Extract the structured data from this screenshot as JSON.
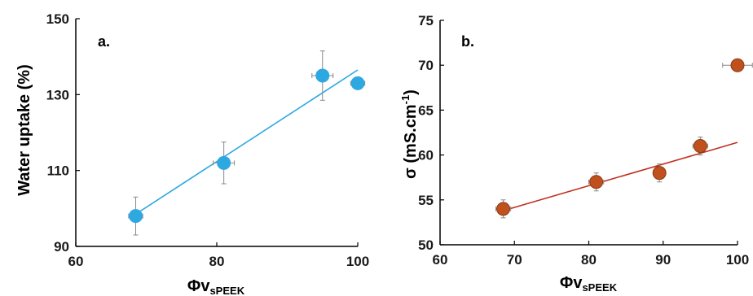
{
  "chart_data": [
    {
      "type": "scatter",
      "panel_label": "a.",
      "xlabel_main": "Φv",
      "xlabel_sub": "sPEEK",
      "ylabel": "Water uptake (%)",
      "xlim": [
        60,
        100
      ],
      "ylim": [
        90,
        150
      ],
      "xticks": [
        "60",
        "80",
        "100"
      ],
      "yticks": [
        "90",
        "110",
        "130",
        "150"
      ],
      "xtick_values": [
        60,
        80,
        100
      ],
      "ytick_values": [
        90,
        110,
        130,
        150
      ],
      "marker_color": "#2ea8e0",
      "line_color": "#2ea8e0",
      "points": [
        {
          "x": 68.5,
          "y": 98,
          "xerr": 1,
          "yerr": 5
        },
        {
          "x": 81,
          "y": 112,
          "xerr": 1.5,
          "yerr": 5.5
        },
        {
          "x": 95,
          "y": 135,
          "xerr": 1.5,
          "yerr": 6.5
        },
        {
          "x": 100,
          "y": 133,
          "xerr": 1,
          "yerr": 0
        }
      ],
      "trendline": [
        {
          "x": 68.5,
          "y": 98.5
        },
        {
          "x": 100,
          "y": 136.5
        }
      ]
    },
    {
      "type": "scatter",
      "panel_label": "b.",
      "xlabel_main": "Φv",
      "xlabel_sub": "sPEEK",
      "ylabel_main": "σ (mS.cm",
      "ylabel_sup": "-1",
      "ylabel_end": ")",
      "xlim": [
        60,
        100
      ],
      "ylim": [
        50,
        75
      ],
      "xticks": [
        "60",
        "70",
        "80",
        "90",
        "100"
      ],
      "yticks": [
        "50",
        "55",
        "60",
        "65",
        "70",
        "75"
      ],
      "xtick_values": [
        60,
        70,
        80,
        90,
        100
      ],
      "ytick_values": [
        50,
        55,
        60,
        65,
        70,
        75
      ],
      "marker_color": "#c0501e",
      "line_color": "#c03020",
      "points": [
        {
          "x": 68.5,
          "y": 54,
          "xerr": 1,
          "yerr": 1
        },
        {
          "x": 81,
          "y": 57,
          "xerr": 1,
          "yerr": 1
        },
        {
          "x": 89.5,
          "y": 58,
          "xerr": 0.8,
          "yerr": 1
        },
        {
          "x": 95,
          "y": 61,
          "xerr": 1,
          "yerr": 1
        },
        {
          "x": 100,
          "y": 70,
          "xerr": 2,
          "yerr": 0
        }
      ],
      "trendline": [
        {
          "x": 68.5,
          "y": 53.8
        },
        {
          "x": 100,
          "y": 61.4
        }
      ]
    }
  ]
}
